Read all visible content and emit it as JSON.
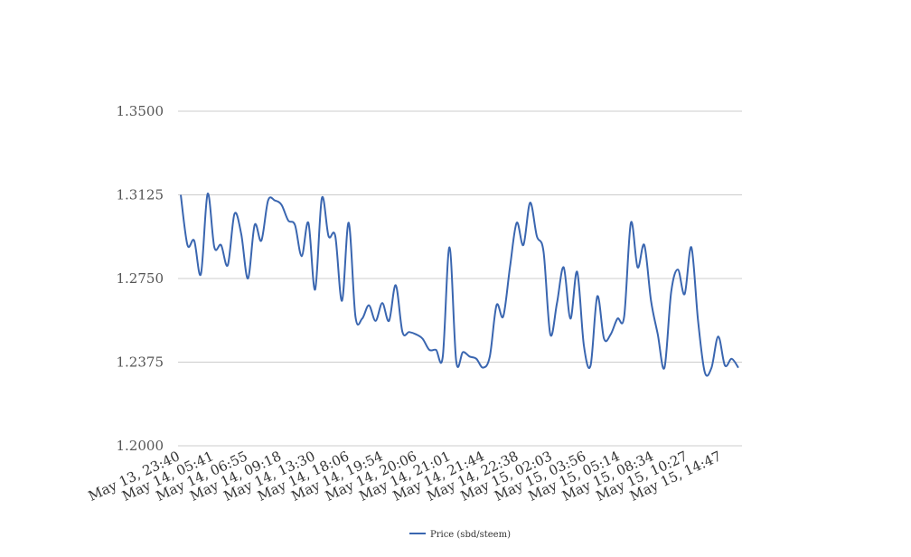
{
  "chart_data": {
    "type": "line",
    "title": "",
    "xlabel": "",
    "ylabel": "",
    "ylim": [
      1.2,
      1.35
    ],
    "y_ticks": [
      "1.2000",
      "1.2375",
      "1.2750",
      "1.3125",
      "1.3500"
    ],
    "x_tick_labels": [
      "May 13, 23:40",
      "May 14, 05:41",
      "May 14, 06:55",
      "May 14, 09:18",
      "May 14, 13:30",
      "May 14, 18:06",
      "May 14, 19:54",
      "May 14, 20:06",
      "May 14, 21:01",
      "May 14, 21:44",
      "May 14, 22:38",
      "May 15, 02:03",
      "May 15, 03:56",
      "May 15, 05:14",
      "May 15, 08:34",
      "May 15, 10:27",
      "May 15, 14:47"
    ],
    "grid": true,
    "legend": "bottom",
    "series": [
      {
        "name": "Price (sbd/steem)",
        "color": "#3a66b0",
        "values": [
          1.3125,
          1.29,
          1.292,
          1.277,
          1.313,
          1.289,
          1.29,
          1.281,
          1.304,
          1.295,
          1.275,
          1.299,
          1.292,
          1.31,
          1.31,
          1.308,
          1.301,
          1.299,
          1.285,
          1.3,
          1.27,
          1.311,
          1.294,
          1.294,
          1.265,
          1.3,
          1.258,
          1.257,
          1.263,
          1.256,
          1.264,
          1.256,
          1.272,
          1.251,
          1.251,
          1.25,
          1.248,
          1.243,
          1.243,
          1.24,
          1.289,
          1.238,
          1.242,
          1.24,
          1.239,
          1.235,
          1.24,
          1.263,
          1.258,
          1.28,
          1.3,
          1.29,
          1.309,
          1.294,
          1.287,
          1.25,
          1.264,
          1.28,
          1.257,
          1.278,
          1.245,
          1.236,
          1.267,
          1.248,
          1.25,
          1.257,
          1.258,
          1.3,
          1.28,
          1.29,
          1.265,
          1.25,
          1.235,
          1.269,
          1.279,
          1.268,
          1.289,
          1.256,
          1.233,
          1.235,
          1.249,
          1.236,
          1.239,
          1.235
        ]
      }
    ]
  }
}
